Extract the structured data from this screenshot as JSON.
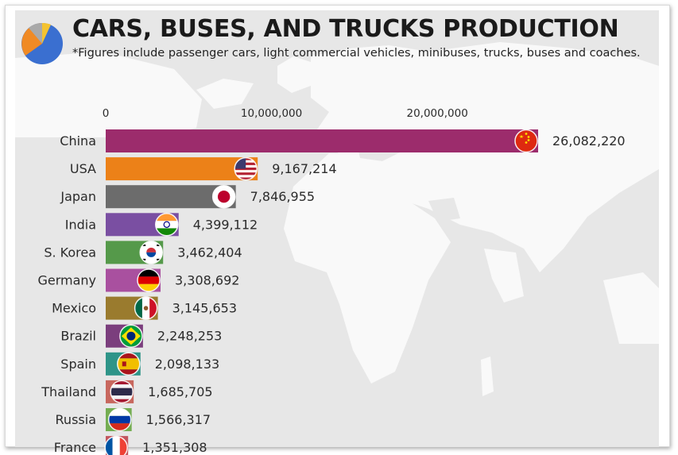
{
  "header": {
    "title": "CARS, BUSES, AND TRUCKS PRODUCTION",
    "subtitle": "*Figures include passenger cars, light commercial vehicles, minibuses, trucks, buses and coaches."
  },
  "chart_data": {
    "type": "bar",
    "orientation": "horizontal",
    "title": "CARS, BUSES, AND TRUCKS PRODUCTION",
    "xlim": [
      0,
      26082220
    ],
    "xticks": [
      0,
      10000000,
      20000000
    ],
    "xtick_labels": [
      "0",
      "10,000,000",
      "20,000,000"
    ],
    "grid": false,
    "categories": [
      "China",
      "USA",
      "Japan",
      "India",
      "S. Korea",
      "Germany",
      "Mexico",
      "Brazil",
      "Spain",
      "Thailand",
      "Russia",
      "France"
    ],
    "values": [
      26082220,
      9167214,
      7846955,
      4399112,
      3462404,
      3308692,
      3145653,
      2248253,
      2098133,
      1685705,
      1566317,
      1351308
    ],
    "value_labels": [
      "26,082,220",
      "9,167,214",
      "7,846,955",
      "4,399,112",
      "3,462,404",
      "3,308,692",
      "3,145,653",
      "2,248,253",
      "2,098,133",
      "1,685,705",
      "1,566,317",
      "1,351,308"
    ],
    "colors": [
      "#9c2c6c",
      "#ec8118",
      "#6c6c6c",
      "#7a4fa2",
      "#55994a",
      "#a9509f",
      "#9a7b2e",
      "#7b3e7d",
      "#2e9488",
      "#c8675e",
      "#74ad52",
      "#c2555e"
    ],
    "flags": [
      "china-flag",
      "usa-flag",
      "japan-flag",
      "india-flag",
      "south-korea-flag",
      "germany-flag",
      "mexico-flag",
      "brazil-flag",
      "spain-flag",
      "thailand-flag",
      "russia-flag",
      "france-flag"
    ]
  },
  "logo": {
    "icon": "pie-chart-icon",
    "colors": [
      "#3a6fd0",
      "#f08a24",
      "#a9a9a9",
      "#f4c330"
    ]
  }
}
